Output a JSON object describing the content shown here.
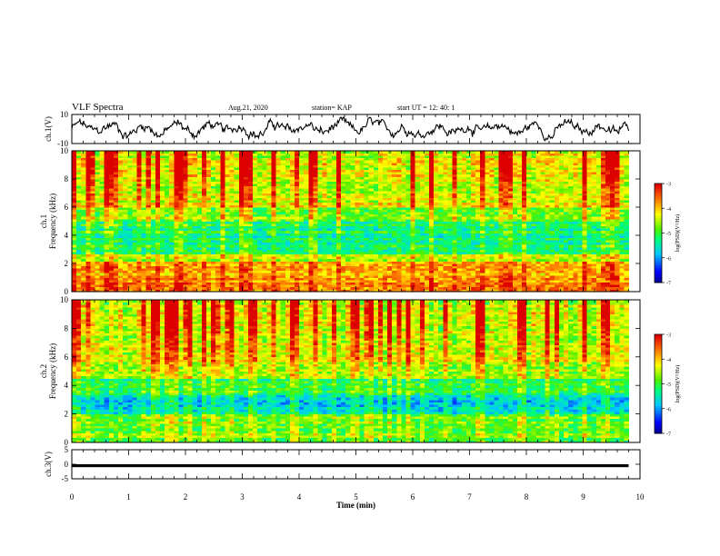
{
  "header": {
    "title": "VLF Spectra",
    "date": "Aug.21, 2020",
    "station": "station= KAP",
    "start": "start  UT =   12: 40: 1"
  },
  "chart_data": [
    {
      "type": "line",
      "ylabel": "ch.1(V)",
      "ylim": [
        -10,
        10
      ],
      "yticks": [
        "10",
        "-10"
      ],
      "xlim": [
        0,
        10
      ],
      "description_of_trace": "noisy waveform between about -8 and 8 V"
    },
    {
      "type": "heatmap",
      "ylabel": "ch.1\nFrequency (kHz)",
      "ylim": [
        0,
        10
      ],
      "yticks": [
        "0",
        "2",
        "4",
        "6",
        "8",
        "10"
      ],
      "xlim": [
        0,
        10
      ],
      "data_xlim": [
        0,
        9.8
      ],
      "colorbar": {
        "label": "log(PSD)(V²/Hz)",
        "range": [
          -7,
          -3
        ],
        "ticks": [
          "-3",
          "-4",
          "-5",
          "-6",
          "-7"
        ]
      }
    },
    {
      "type": "heatmap",
      "ylabel": "ch.2\nFrequency (kHz)",
      "ylim": [
        0,
        10
      ],
      "yticks": [
        "0",
        "2",
        "4",
        "6",
        "8",
        "10"
      ],
      "xlim": [
        0,
        10
      ],
      "data_xlim": [
        0,
        9.8
      ],
      "colorbar": {
        "label": "log(PSD)(V²/Hz)",
        "range": [
          -7,
          -3
        ],
        "ticks": [
          "-3",
          "-4",
          "-5",
          "-6",
          "-7"
        ]
      }
    },
    {
      "type": "line",
      "ylabel": "ch.3(V)",
      "ylim": [
        -5,
        5
      ],
      "yticks": [
        "5",
        "0",
        "-5"
      ],
      "xlim": [
        0,
        10
      ],
      "xlabel": "Time (min)",
      "xticks": [
        "0",
        "1",
        "2",
        "3",
        "4",
        "5",
        "6",
        "7",
        "8",
        "9",
        "10"
      ],
      "trace_value_range": [
        -1,
        0
      ]
    }
  ]
}
